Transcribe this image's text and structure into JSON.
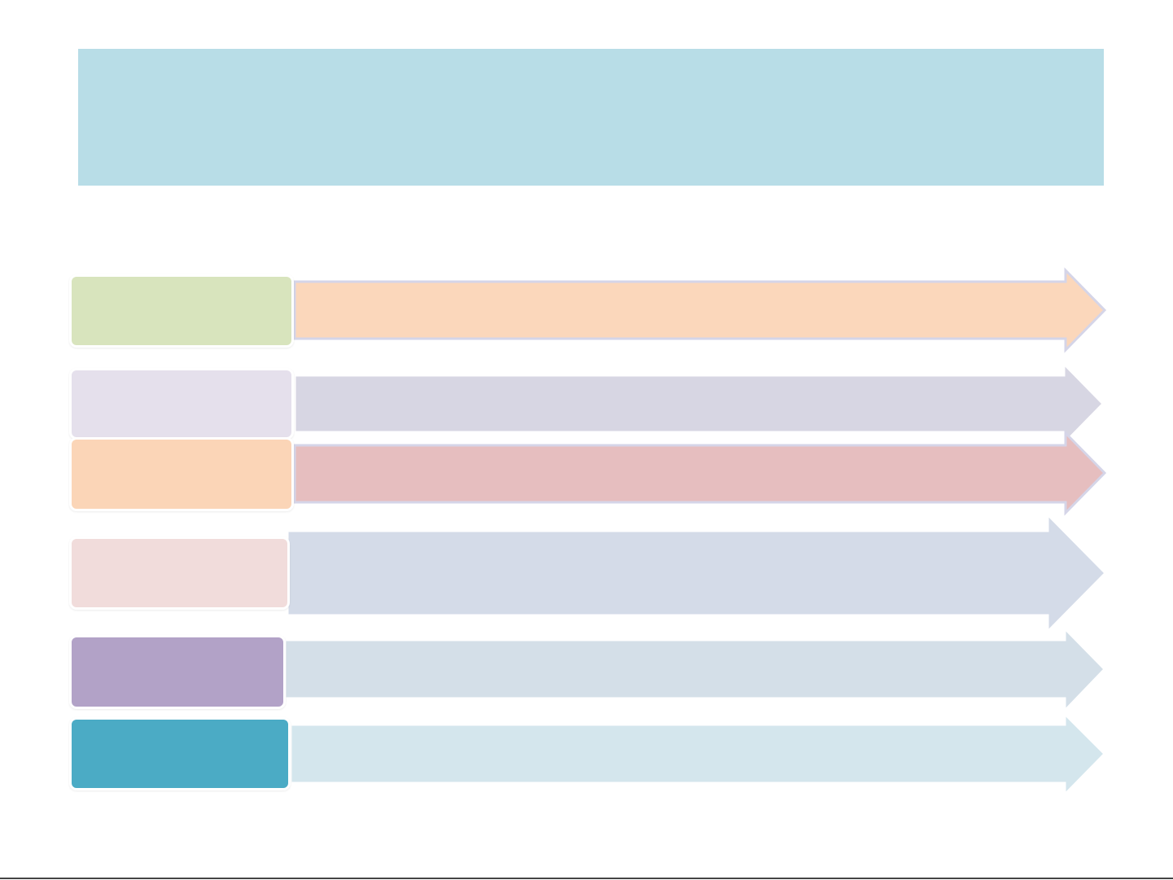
{
  "colors": {
    "banner": "#b8dde7",
    "rule": "#444444"
  },
  "title": "",
  "rows": [
    {
      "label": "",
      "text": "",
      "box_color": "#d8e4bd",
      "arrow_color": "#fbd7bb",
      "arrow_border": "#d5d5e8"
    },
    {
      "label": "",
      "text": "",
      "box_color": "#e5e0ec",
      "arrow_color": "#d7d6e3",
      "arrow_border": "#ffffff"
    },
    {
      "label": "",
      "text": "",
      "box_color": "#fbd5b7",
      "arrow_color": "#e6bebf",
      "arrow_border": "#d5d5e8"
    },
    {
      "label": "",
      "text": "",
      "box_color": "#f1dcdb",
      "arrow_color": "#d4dbe8",
      "arrow_border": "#ffffff"
    },
    {
      "label": "",
      "text": "",
      "box_color": "#b2a2c7",
      "arrow_color": "#d4dfe8",
      "arrow_border": "#ffffff"
    },
    {
      "label": "",
      "text": "",
      "box_color": "#4babc5",
      "arrow_color": "#d4e6ed",
      "arrow_border": "#ffffff"
    }
  ]
}
